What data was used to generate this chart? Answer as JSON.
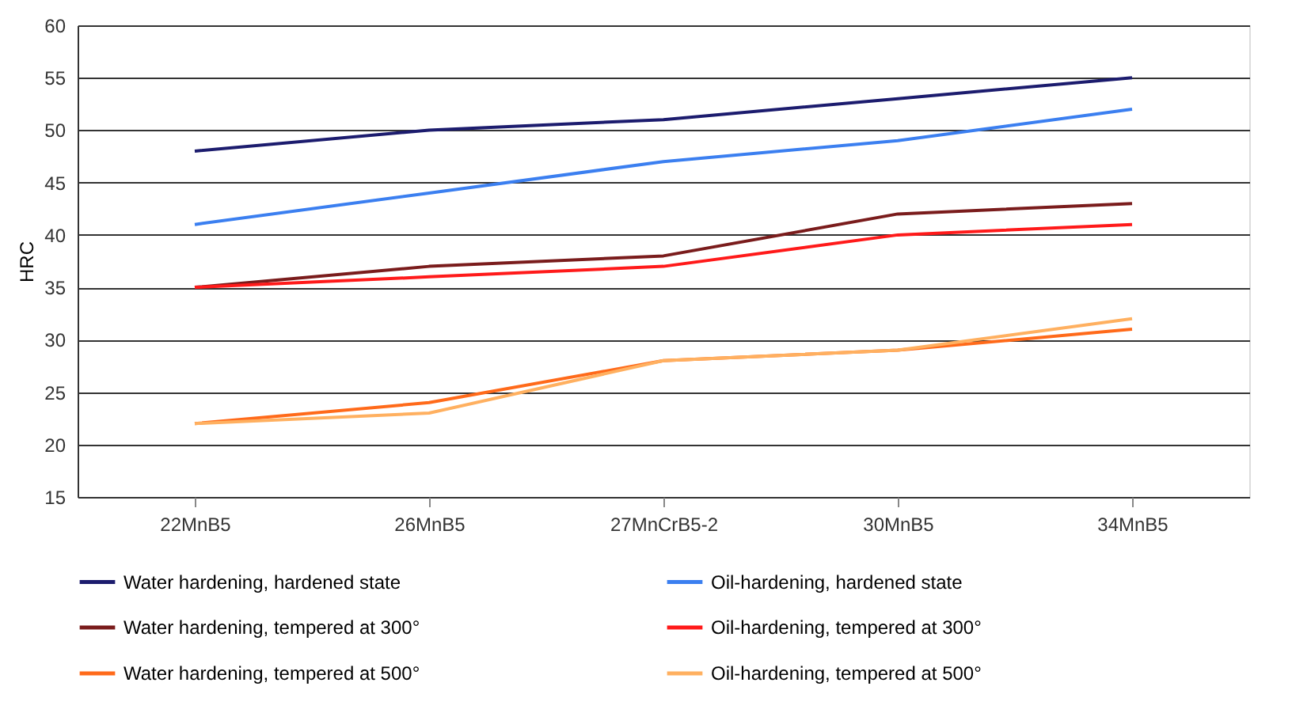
{
  "chart_data": {
    "type": "line",
    "ylabel": "HRC",
    "categories": [
      "22MnB5",
      "26MnB5",
      "27MnCrB5-2",
      "30MnB5",
      "34MnB5"
    ],
    "series": [
      {
        "name": "Water hardening, hardened state",
        "color": "#1c1c6e",
        "values": [
          48,
          50,
          51,
          53,
          55
        ]
      },
      {
        "name": "Oil-hardening, hardened state",
        "color": "#3b7ff0",
        "values": [
          41,
          44,
          47,
          49,
          52
        ]
      },
      {
        "name": "Water hardening, tempered at 300°",
        "color": "#7a1c1c",
        "values": [
          35,
          37,
          38,
          42,
          43
        ]
      },
      {
        "name": "Oil-hardening, tempered at 300°",
        "color": "#ff1a1a",
        "values": [
          35,
          36,
          37,
          40,
          41
        ]
      },
      {
        "name": "Water hardening, tempered at 500°",
        "color": "#ff6a1a",
        "values": [
          22,
          24,
          28,
          29,
          31
        ]
      },
      {
        "name": "Oil-hardening, tempered at 500°",
        "color": "#ffb060",
        "values": [
          22,
          23,
          28,
          29,
          32
        ]
      }
    ],
    "ylim": [
      15,
      60
    ],
    "yticks": [
      15,
      20,
      25,
      30,
      35,
      40,
      45,
      50,
      55,
      60
    ],
    "grid": "y",
    "legend": "bottom",
    "marker": "none",
    "line_style": "solid"
  }
}
